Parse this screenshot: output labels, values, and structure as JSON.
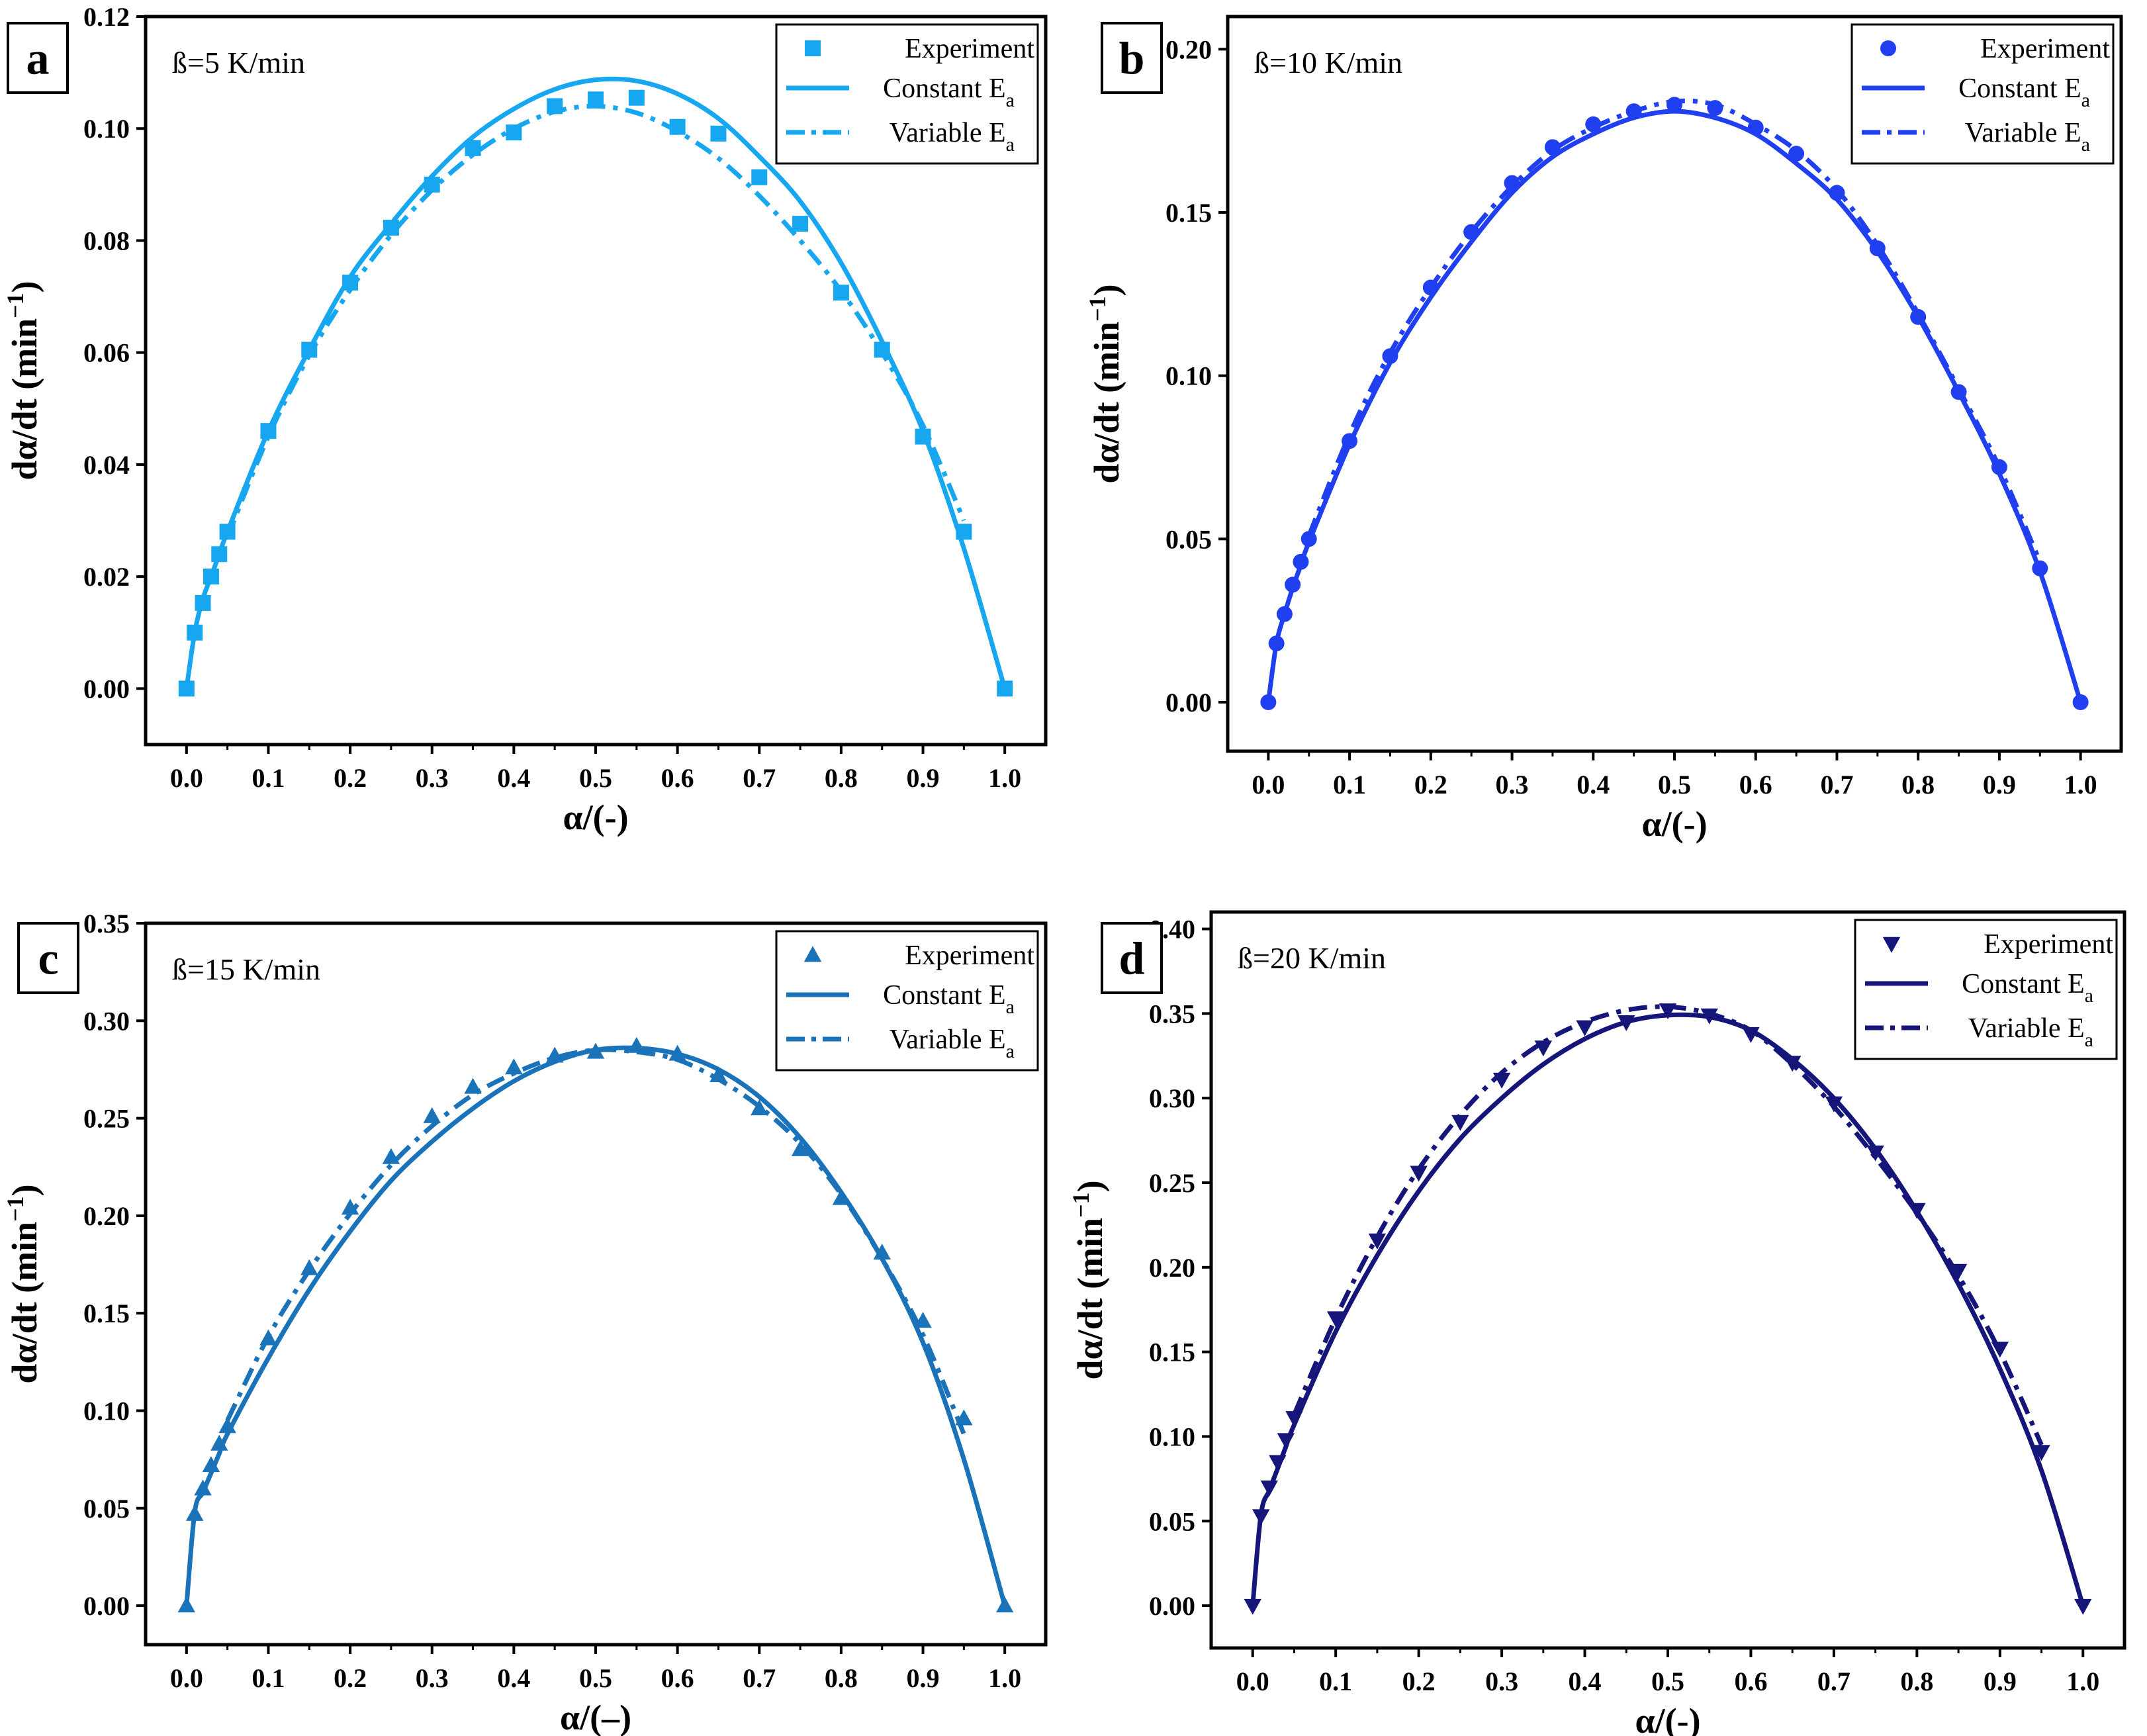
{
  "figure": {
    "x_label_prefix": "α/(",
    "x_label_suffix": ")",
    "y_label_prefix": "dα/dt (min",
    "y_label_sup": "−1",
    "y_label_suffix": ")"
  },
  "chart_data": [
    {
      "type": "line",
      "panel": "a",
      "annotation": "ß=5 K/min",
      "color": "#16a7f0",
      "marker": "square",
      "xlabel": "α/(-)",
      "x_dash": "-",
      "ylabel": "dα/dt (min⁻¹)",
      "xlim": [
        -0.05,
        1.05
      ],
      "ylim": [
        -0.01,
        0.12
      ],
      "xticks": [
        "0.0",
        "0.1",
        "0.2",
        "0.3",
        "0.4",
        "0.5",
        "0.6",
        "0.7",
        "0.8",
        "0.9",
        "1.0"
      ],
      "yticks": [
        "0.00",
        "0.02",
        "0.04",
        "0.06",
        "0.08",
        "0.10",
        "0.12"
      ],
      "legend": {
        "experiment": "Experiment",
        "constant": "Constant E",
        "variable": "Variable E",
        "subscript": "a"
      },
      "series": [
        {
          "name": "Experiment",
          "style": "markers",
          "x": [
            0,
            0.01,
            0.02,
            0.03,
            0.04,
            0.05,
            0.1,
            0.15,
            0.2,
            0.25,
            0.3,
            0.35,
            0.4,
            0.45,
            0.5,
            0.55,
            0.6,
            0.65,
            0.7,
            0.75,
            0.8,
            0.85,
            0.9,
            0.95,
            1.0
          ],
          "y": [
            0,
            0.01,
            0.0153,
            0.02,
            0.024,
            0.028,
            0.046,
            0.0605,
            0.0725,
            0.0823,
            0.09,
            0.0965,
            0.0993,
            0.104,
            0.1052,
            0.1055,
            0.1003,
            0.0991,
            0.0913,
            0.083,
            0.0707,
            0.0605,
            0.045,
            0.028,
            0
          ]
        },
        {
          "name": "Constant Ea",
          "style": "solid",
          "x": [
            0,
            0.01,
            0.02,
            0.03,
            0.04,
            0.05,
            0.1,
            0.15,
            0.2,
            0.25,
            0.3,
            0.35,
            0.4,
            0.45,
            0.5,
            0.55,
            0.6,
            0.65,
            0.7,
            0.75,
            0.8,
            0.85,
            0.9,
            0.95,
            1.0
          ],
          "y": [
            0,
            0.01,
            0.016,
            0.02,
            0.024,
            0.028,
            0.046,
            0.0605,
            0.0735,
            0.083,
            0.0915,
            0.0985,
            0.1035,
            0.107,
            0.1087,
            0.1085,
            0.1062,
            0.1018,
            0.095,
            0.087,
            0.076,
            0.062,
            0.046,
            0.025,
            0
          ]
        },
        {
          "name": "Variable Ea",
          "style": "dashdot",
          "x": [
            0.05,
            0.1,
            0.15,
            0.2,
            0.25,
            0.3,
            0.35,
            0.4,
            0.45,
            0.5,
            0.55,
            0.6,
            0.65,
            0.7,
            0.75,
            0.8,
            0.85,
            0.9,
            0.95
          ],
          "y": [
            0.027,
            0.045,
            0.0595,
            0.0712,
            0.081,
            0.089,
            0.0953,
            0.1,
            0.103,
            0.104,
            0.1028,
            0.0995,
            0.0947,
            0.088,
            0.08,
            0.071,
            0.06,
            0.047,
            0.03
          ]
        }
      ]
    },
    {
      "type": "line",
      "panel": "b",
      "annotation": "ß=10 K/min",
      "color": "#1f3ff0",
      "marker": "circle",
      "xlabel": "α/(-)",
      "x_dash": "-",
      "ylabel": "dα/dt (min⁻¹)",
      "xlim": [
        -0.05,
        1.05
      ],
      "ylim": [
        -0.015,
        0.21
      ],
      "xticks": [
        "0.0",
        "0.1",
        "0.2",
        "0.3",
        "0.4",
        "0.5",
        "0.6",
        "0.7",
        "0.8",
        "0.9",
        "1.0"
      ],
      "yticks": [
        "0.00",
        "0.05",
        "0.10",
        "0.15",
        "0.20"
      ],
      "legend": {
        "experiment": "Experiment",
        "constant": "Constant E",
        "variable": "Variable E",
        "subscript": "a"
      },
      "series": [
        {
          "name": "Experiment",
          "style": "markers",
          "x": [
            0,
            0.01,
            0.02,
            0.03,
            0.04,
            0.05,
            0.1,
            0.15,
            0.2,
            0.25,
            0.3,
            0.35,
            0.4,
            0.45,
            0.5,
            0.55,
            0.6,
            0.65,
            0.7,
            0.75,
            0.8,
            0.85,
            0.9,
            0.95,
            1.0
          ],
          "y": [
            0,
            0.018,
            0.027,
            0.036,
            0.043,
            0.05,
            0.08,
            0.106,
            0.127,
            0.144,
            0.159,
            0.17,
            0.177,
            0.181,
            0.183,
            0.182,
            0.176,
            0.168,
            0.156,
            0.139,
            0.118,
            0.095,
            0.072,
            0.041,
            0
          ]
        },
        {
          "name": "Constant Ea",
          "style": "solid",
          "x": [
            0,
            0.01,
            0.02,
            0.03,
            0.04,
            0.05,
            0.1,
            0.15,
            0.2,
            0.25,
            0.3,
            0.35,
            0.4,
            0.45,
            0.5,
            0.55,
            0.6,
            0.65,
            0.7,
            0.75,
            0.8,
            0.85,
            0.9,
            0.95,
            1.0
          ],
          "y": [
            0,
            0.018,
            0.027,
            0.035,
            0.042,
            0.049,
            0.079,
            0.104,
            0.124,
            0.141,
            0.156,
            0.167,
            0.174,
            0.179,
            0.181,
            0.179,
            0.174,
            0.165,
            0.154,
            0.138,
            0.118,
            0.095,
            0.07,
            0.04,
            0
          ]
        },
        {
          "name": "Variable Ea",
          "style": "dashdot",
          "x": [
            0.05,
            0.1,
            0.15,
            0.2,
            0.25,
            0.3,
            0.35,
            0.4,
            0.45,
            0.5,
            0.55,
            0.6,
            0.65,
            0.7,
            0.75,
            0.8,
            0.85,
            0.9,
            0.95
          ],
          "y": [
            0.051,
            0.082,
            0.107,
            0.127,
            0.144,
            0.158,
            0.169,
            0.176,
            0.181,
            0.184,
            0.183,
            0.177,
            0.169,
            0.157,
            0.14,
            0.119,
            0.096,
            0.072,
            0.043
          ]
        }
      ]
    },
    {
      "type": "line",
      "panel": "c",
      "annotation": "ß=15 K/min",
      "color": "#1a72b8",
      "marker": "triangle-up",
      "xlabel": "α/(–)",
      "x_dash": "–",
      "ylabel": "dα/dt (min⁻¹)",
      "xlim": [
        -0.05,
        1.05
      ],
      "ylim": [
        -0.02,
        0.35
      ],
      "xticks": [
        "0.0",
        "0.1",
        "0.2",
        "0.3",
        "0.4",
        "0.5",
        "0.6",
        "0.7",
        "0.8",
        "0.9",
        "1.0"
      ],
      "yticks": [
        "0.00",
        "0.05",
        "0.10",
        "0.15",
        "0.20",
        "0.25",
        "0.30",
        "0.35"
      ],
      "legend": {
        "experiment": "Experiment",
        "constant": "Constant E",
        "variable": "Variable E",
        "subscript": "a"
      },
      "series": [
        {
          "name": "Experiment",
          "style": "markers",
          "x": [
            0,
            0.01,
            0.02,
            0.03,
            0.04,
            0.05,
            0.1,
            0.15,
            0.2,
            0.25,
            0.3,
            0.35,
            0.4,
            0.45,
            0.5,
            0.55,
            0.6,
            0.65,
            0.7,
            0.75,
            0.8,
            0.85,
            0.9,
            0.95,
            1.0
          ],
          "y": [
            0,
            0.047,
            0.06,
            0.072,
            0.083,
            0.092,
            0.137,
            0.173,
            0.204,
            0.23,
            0.251,
            0.266,
            0.276,
            0.282,
            0.284,
            0.287,
            0.283,
            0.272,
            0.255,
            0.234,
            0.209,
            0.181,
            0.146,
            0.096,
            0
          ]
        },
        {
          "name": "Constant Ea",
          "style": "solid",
          "x": [
            0,
            0.01,
            0.02,
            0.03,
            0.04,
            0.05,
            0.1,
            0.15,
            0.2,
            0.25,
            0.3,
            0.35,
            0.4,
            0.45,
            0.5,
            0.55,
            0.6,
            0.65,
            0.7,
            0.75,
            0.8,
            0.85,
            0.9,
            0.95,
            1.0
          ],
          "y": [
            0,
            0.048,
            0.058,
            0.068,
            0.078,
            0.088,
            0.127,
            0.162,
            0.192,
            0.218,
            0.238,
            0.255,
            0.269,
            0.279,
            0.285,
            0.286,
            0.283,
            0.275,
            0.261,
            0.24,
            0.212,
            0.178,
            0.135,
            0.075,
            0
          ]
        },
        {
          "name": "Variable Ea",
          "style": "dashdot",
          "x": [
            0.05,
            0.1,
            0.15,
            0.2,
            0.25,
            0.3,
            0.35,
            0.4,
            0.45,
            0.5,
            0.55,
            0.6,
            0.65,
            0.7,
            0.75,
            0.8,
            0.85,
            0.9,
            0.95
          ],
          "y": [
            0.095,
            0.138,
            0.172,
            0.201,
            0.226,
            0.246,
            0.262,
            0.273,
            0.281,
            0.285,
            0.284,
            0.28,
            0.27,
            0.256,
            0.237,
            0.211,
            0.178,
            0.139,
            0.088
          ]
        }
      ]
    },
    {
      "type": "line",
      "panel": "d",
      "annotation": "ß=20 K/min",
      "color": "#15157a",
      "marker": "triangle-down",
      "xlabel": "α/(-)",
      "x_dash": "-",
      "ylabel": "dα/dt (min⁻¹)",
      "xlim": [
        -0.05,
        1.05
      ],
      "ylim": [
        -0.025,
        0.41
      ],
      "xticks": [
        "0.0",
        "0.1",
        "0.2",
        "0.3",
        "0.4",
        "0.5",
        "0.6",
        "0.7",
        "0.8",
        "0.9",
        "1.0"
      ],
      "yticks": [
        "0.00",
        "0.05",
        "0.10",
        "0.15",
        "0.20",
        "0.25",
        "0.30",
        "0.35",
        "0.40"
      ],
      "legend": {
        "experiment": "Experiment",
        "constant": "Constant E",
        "variable": "Variable E",
        "subscript": "a"
      },
      "series": [
        {
          "name": "Experiment",
          "style": "markers",
          "x": [
            0,
            0.01,
            0.02,
            0.03,
            0.04,
            0.05,
            0.1,
            0.15,
            0.2,
            0.25,
            0.3,
            0.35,
            0.4,
            0.45,
            0.5,
            0.55,
            0.6,
            0.65,
            0.7,
            0.75,
            0.8,
            0.85,
            0.9,
            0.95,
            1.0
          ],
          "y": [
            0,
            0.053,
            0.07,
            0.085,
            0.098,
            0.111,
            0.17,
            0.216,
            0.256,
            0.286,
            0.311,
            0.33,
            0.342,
            0.345,
            0.352,
            0.349,
            0.338,
            0.321,
            0.297,
            0.268,
            0.234,
            0.198,
            0.152,
            0.091,
            0
          ]
        },
        {
          "name": "Constant Ea",
          "style": "solid",
          "x": [
            0,
            0.01,
            0.02,
            0.03,
            0.04,
            0.05,
            0.1,
            0.15,
            0.2,
            0.25,
            0.3,
            0.35,
            0.4,
            0.45,
            0.5,
            0.55,
            0.6,
            0.65,
            0.7,
            0.75,
            0.8,
            0.85,
            0.9,
            0.95,
            1.0
          ],
          "y": [
            0,
            0.054,
            0.068,
            0.081,
            0.094,
            0.107,
            0.162,
            0.207,
            0.245,
            0.276,
            0.3,
            0.32,
            0.335,
            0.345,
            0.349,
            0.348,
            0.34,
            0.323,
            0.3,
            0.27,
            0.233,
            0.19,
            0.14,
            0.08,
            0
          ]
        },
        {
          "name": "Variable Ea",
          "style": "dashdot",
          "x": [
            0.05,
            0.1,
            0.15,
            0.2,
            0.25,
            0.3,
            0.35,
            0.4,
            0.45,
            0.5,
            0.55,
            0.6,
            0.65,
            0.7,
            0.75,
            0.8,
            0.85,
            0.9,
            0.95
          ],
          "y": [
            0.113,
            0.17,
            0.218,
            0.258,
            0.29,
            0.315,
            0.333,
            0.345,
            0.352,
            0.354,
            0.35,
            0.34,
            0.32,
            0.295,
            0.265,
            0.232,
            0.195,
            0.15,
            0.095
          ]
        }
      ]
    }
  ]
}
